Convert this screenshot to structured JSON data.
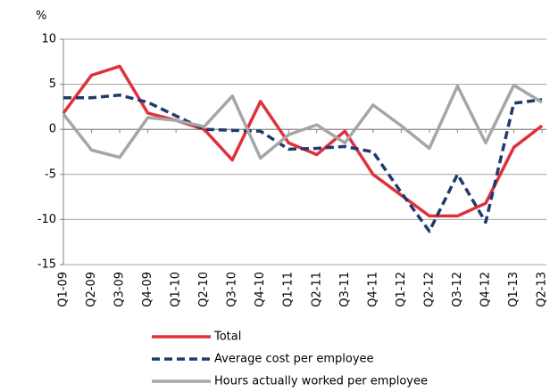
{
  "chart_data": {
    "type": "line",
    "y_label": "%",
    "categories": [
      "Q1-09",
      "Q2-09",
      "Q3-09",
      "Q4-09",
      "Q1-10",
      "Q2-10",
      "Q3-10",
      "Q4-10",
      "Q1-11",
      "Q2-11",
      "Q3-11",
      "Q4-11",
      "Q1-12",
      "Q2-12",
      "Q3-12",
      "Q4-12",
      "Q1-13",
      "Q2-13"
    ],
    "series": [
      {
        "name": "Total",
        "color": "#e0303a",
        "dash": false,
        "values": [
          1.8,
          6.0,
          7.0,
          1.8,
          1.0,
          0,
          -3.4,
          3.1,
          -1.5,
          -2.8,
          -0.2,
          -5.0,
          -7.3,
          -9.6,
          -9.6,
          -8.2,
          -2.0,
          0.4
        ]
      },
      {
        "name": "Average cost per employee",
        "color": "#1f3a6e",
        "dash": true,
        "values": [
          3.5,
          3.5,
          3.8,
          3.0,
          1.5,
          0,
          -0.1,
          -0.2,
          -2.2,
          -2.1,
          -1.9,
          -2.5,
          -7.0,
          -11.3,
          -5.0,
          -10.3,
          2.9,
          3.3
        ]
      },
      {
        "name": "Hours actually worked per employee",
        "color": "#a6a6a6",
        "dash": false,
        "values": [
          1.7,
          -2.3,
          -3.1,
          1.3,
          1.0,
          0.3,
          3.7,
          -3.2,
          -0.6,
          0.5,
          -1.5,
          2.7,
          0.4,
          -2.1,
          4.8,
          -1.5,
          4.9,
          3.0
        ]
      }
    ],
    "ylim": [
      -15,
      10
    ],
    "yticks": [
      -15,
      -10,
      -5,
      0,
      5,
      10
    ],
    "grid": true
  }
}
